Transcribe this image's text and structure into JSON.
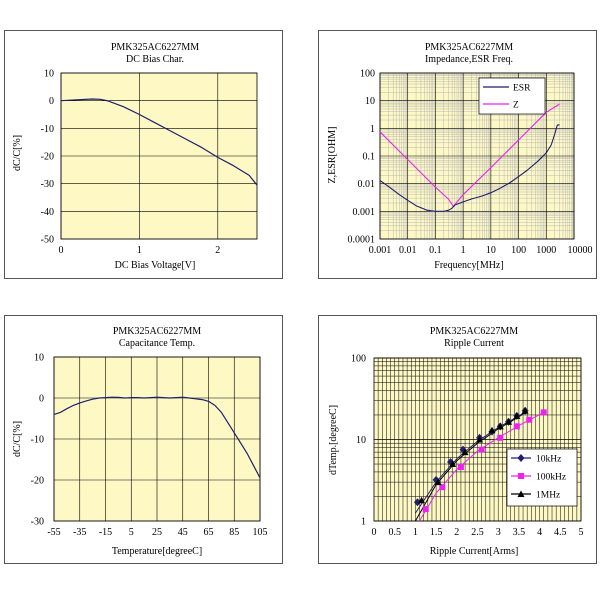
{
  "charts": [
    {
      "title": "PMK325AC6227MM",
      "subtitle": "DC Bias Char.",
      "xlabel": "DC Bias Voltage[V]",
      "ylabel": "dC/C[%]",
      "xticks": [
        "0",
        "1",
        "2"
      ],
      "yticks": [
        "10",
        "0",
        "-10",
        "-20",
        "-30",
        "-40",
        "-50"
      ],
      "colors": {
        "plot_bg": "#fdf8c4",
        "grid": "#000000",
        "line": "#1f1f6e"
      }
    },
    {
      "title": "PMK325AC6227MM",
      "subtitle": "Impedance,ESR  Freq.",
      "xlabel": "Frequency[MHz]",
      "ylabel": "Z,ESR[OHM]",
      "xticks": [
        "0.001",
        "0.01",
        "0.1",
        "1",
        "10",
        "100",
        "1000",
        "10000"
      ],
      "yticks": [
        "100",
        "10",
        "1",
        "0.1",
        "0.01",
        "0.001",
        "0.0001"
      ],
      "legend": [
        "ESR",
        "Z"
      ],
      "colors": {
        "plot_bg": "#fdf8c4",
        "grid": "#b8b8b8",
        "esr": "#1f1f6e",
        "z": "#ee22ee"
      }
    },
    {
      "title": "PMK325AC6227MM",
      "subtitle": "Capacitance Temp.",
      "xlabel": "Temperature[degreeC]",
      "ylabel": "dC/C[%]",
      "xticks": [
        "-55",
        "-35",
        "-15",
        "5",
        "25",
        "45",
        "65",
        "85",
        "105"
      ],
      "yticks": [
        "10",
        "0",
        "-10",
        "-20",
        "-30"
      ],
      "colors": {
        "plot_bg": "#fdf8c4",
        "grid": "#000000",
        "line": "#1f1f6e"
      }
    },
    {
      "title": "PMK325AC6227MM",
      "subtitle": "Ripple Current",
      "xlabel": "Ripple Current[Arms]",
      "ylabel": "dTemp.[degreeC]",
      "xticks": [
        "0",
        "0.5",
        "1",
        "1.5",
        "2",
        "2.5",
        "3",
        "3.5",
        "4",
        "4.5",
        "5"
      ],
      "yticks": [
        "100",
        "10",
        "1"
      ],
      "legend": [
        "10kHz",
        "100kHz",
        "1MHz"
      ],
      "colors": {
        "plot_bg": "#fdf8c4",
        "grid": "#000000",
        "s10k": "#1f1f6e",
        "s100k": "#ee22ee",
        "s1m": "#000000"
      }
    }
  ],
  "chart_data": [
    {
      "type": "line",
      "title": "PMK325AC6227MM DC Bias Char.",
      "xlabel": "DC Bias Voltage[V]",
      "ylabel": "dC/C[%]",
      "xlim": [
        0,
        2.5
      ],
      "ylim": [
        -50,
        10
      ],
      "x": [
        0,
        0.2,
        0.4,
        0.5,
        0.6,
        0.8,
        1.0,
        1.2,
        1.4,
        1.6,
        1.8,
        2.0,
        2.2,
        2.4,
        2.5
      ],
      "y": [
        0,
        0.3,
        0.6,
        0.5,
        -0.1,
        -2.2,
        -5,
        -8,
        -11,
        -14,
        -17,
        -20.5,
        -23.5,
        -27,
        -30.5
      ]
    },
    {
      "type": "line",
      "title": "PMK325AC6227MM Impedance,ESR Freq.",
      "xlabel": "Frequency[MHz]",
      "ylabel": "Z,ESR[OHM]",
      "xscale": "log",
      "yscale": "log",
      "xlim": [
        0.001,
        10000
      ],
      "ylim": [
        0.0001,
        100
      ],
      "series": [
        {
          "name": "ESR",
          "x": [
            0.001,
            0.002,
            0.005,
            0.01,
            0.02,
            0.05,
            0.1,
            0.2,
            0.3,
            0.4,
            0.5,
            1,
            2,
            5,
            10,
            20,
            50,
            100,
            200,
            500,
            1000,
            1500,
            2000,
            2500,
            3000
          ],
          "y": [
            0.013,
            0.008,
            0.004,
            0.0025,
            0.0016,
            0.0011,
            0.001,
            0.001,
            0.0011,
            0.0013,
            0.0017,
            0.0022,
            0.0028,
            0.0036,
            0.0047,
            0.0065,
            0.011,
            0.018,
            0.03,
            0.065,
            0.13,
            0.25,
            0.6,
            1.3,
            1.35
          ]
        },
        {
          "name": "Z",
          "x": [
            0.001,
            0.01,
            0.1,
            0.3,
            0.45,
            0.6,
            1,
            10,
            100,
            1000,
            3000
          ],
          "y": [
            0.75,
            0.075,
            0.0075,
            0.0027,
            0.0015,
            0.0022,
            0.004,
            0.038,
            0.38,
            3.8,
            7.5
          ]
        }
      ]
    },
    {
      "type": "line",
      "title": "PMK325AC6227MM Capacitance Temp.",
      "xlabel": "Temperature[degreeC]",
      "ylabel": "dC/C[%]",
      "xlim": [
        -55,
        105
      ],
      "ylim": [
        -30,
        10
      ],
      "x": [
        -55,
        -50,
        -45,
        -40,
        -35,
        -30,
        -25,
        -20,
        -15,
        -10,
        -5,
        0,
        5,
        10,
        15,
        20,
        25,
        30,
        35,
        40,
        45,
        50,
        55,
        60,
        65,
        70,
        75,
        80,
        85,
        90,
        95,
        100,
        105
      ],
      "y": [
        -4,
        -3.5,
        -2.6,
        -1.8,
        -1.2,
        -0.7,
        -0.3,
        0,
        0.1,
        0.2,
        0.15,
        0,
        0.1,
        0.1,
        0,
        0.1,
        0.2,
        0.1,
        0,
        0.1,
        0.2,
        0,
        -0.2,
        -0.4,
        -0.8,
        -1.8,
        -3.5,
        -6,
        -8.5,
        -11,
        -13.5,
        -16.5,
        -19.5
      ]
    },
    {
      "type": "scatter",
      "title": "PMK325AC6227MM Ripple Current",
      "xlabel": "Ripple Current[Arms]",
      "ylabel": "dTemp.[degreeC]",
      "yscale": "log",
      "xlim": [
        0,
        5
      ],
      "ylim": [
        1,
        100
      ],
      "series": [
        {
          "name": "10kHz",
          "x": [
            1.05,
            1.5,
            1.85,
            2.15,
            2.55,
            2.85,
            3.05,
            3.25,
            3.45,
            3.65
          ],
          "y": [
            1.7,
            3.2,
            5.3,
            7.5,
            10.5,
            12.5,
            14.5,
            16.5,
            19.5,
            22.5
          ]
        },
        {
          "name": "100kHz",
          "x": [
            1.25,
            1.65,
            2.1,
            2.6,
            3.05,
            3.45,
            3.75,
            4.1
          ],
          "y": [
            1.4,
            2.6,
            4.6,
            7.5,
            10.5,
            14.5,
            17.5,
            21.5
          ]
        },
        {
          "name": "1MHz",
          "x": [
            1.15,
            1.55,
            1.9,
            2.2,
            2.55,
            2.85,
            3.05,
            3.25,
            3.45,
            3.65
          ],
          "y": [
            1.8,
            3.0,
            5.0,
            7.0,
            10.0,
            13.0,
            14.5,
            16.5,
            19.5,
            22.5
          ]
        }
      ]
    }
  ]
}
